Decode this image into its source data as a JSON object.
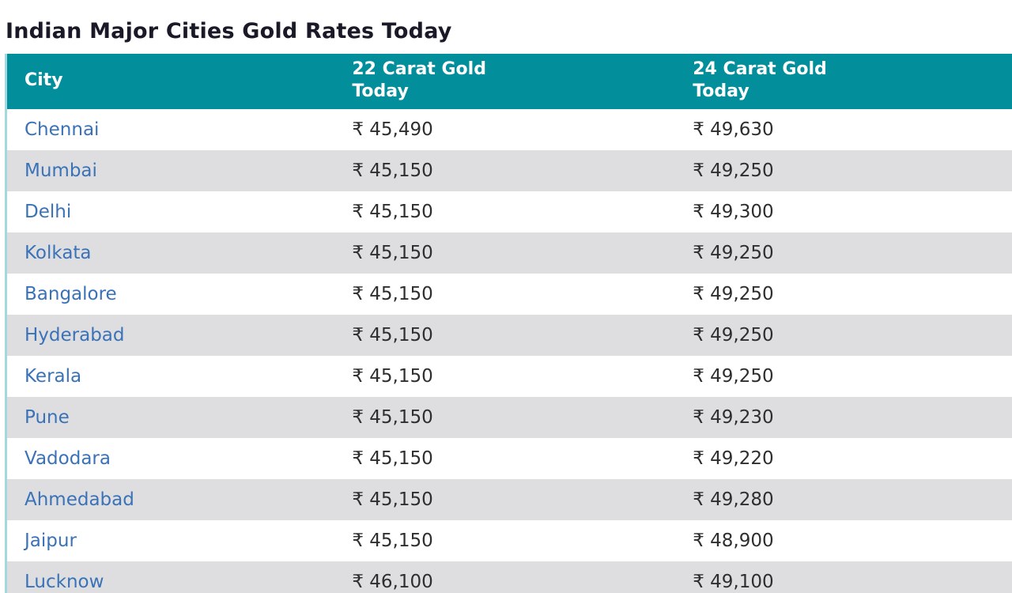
{
  "page": {
    "title": "Indian Major Cities Gold Rates Today"
  },
  "table": {
    "columns": {
      "city": "City",
      "carat22": "22 Carat Gold Today",
      "carat24": "24 Carat Gold Today"
    },
    "rows": [
      {
        "city": "Chennai",
        "carat22": "₹ 45,490",
        "carat24": "₹ 49,630"
      },
      {
        "city": "Mumbai",
        "carat22": "₹ 45,150",
        "carat24": "₹ 49,250"
      },
      {
        "city": "Delhi",
        "carat22": "₹ 45,150",
        "carat24": "₹ 49,300"
      },
      {
        "city": "Kolkata",
        "carat22": "₹ 45,150",
        "carat24": "₹ 49,250"
      },
      {
        "city": "Bangalore",
        "carat22": "₹ 45,150",
        "carat24": "₹ 49,250"
      },
      {
        "city": "Hyderabad",
        "carat22": "₹ 45,150",
        "carat24": "₹ 49,250"
      },
      {
        "city": "Kerala",
        "carat22": "₹ 45,150",
        "carat24": "₹ 49,250"
      },
      {
        "city": "Pune",
        "carat22": "₹ 45,150",
        "carat24": "₹ 49,230"
      },
      {
        "city": "Vadodara",
        "carat22": "₹ 45,150",
        "carat24": "₹ 49,220"
      },
      {
        "city": "Ahmedabad",
        "carat22": "₹ 45,150",
        "carat24": "₹ 49,280"
      },
      {
        "city": "Jaipur",
        "carat22": "₹ 45,150",
        "carat24": "₹ 48,900"
      },
      {
        "city": "Lucknow",
        "carat22": "₹ 46,100",
        "carat24": "₹ 49,100"
      }
    ]
  },
  "colors": {
    "header_bg": "#028e9b",
    "alt_row_bg": "#dedee0",
    "link_blue": "#3a72b8",
    "title_text": "#191927",
    "value_text": "#2e2e2e",
    "table_left_border": "#a3d8de",
    "bottom_bar": "#c2c1c5"
  }
}
